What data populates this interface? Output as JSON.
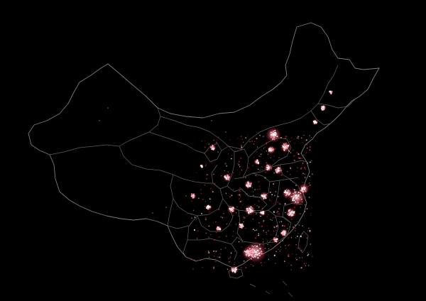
{
  "map": {
    "background": "#000000",
    "boundary_color": "#6f6f6f",
    "light_colors": {
      "core": "#ffffff",
      "mid": "#ff9aa8",
      "glow": "#d2203a"
    }
  }
}
